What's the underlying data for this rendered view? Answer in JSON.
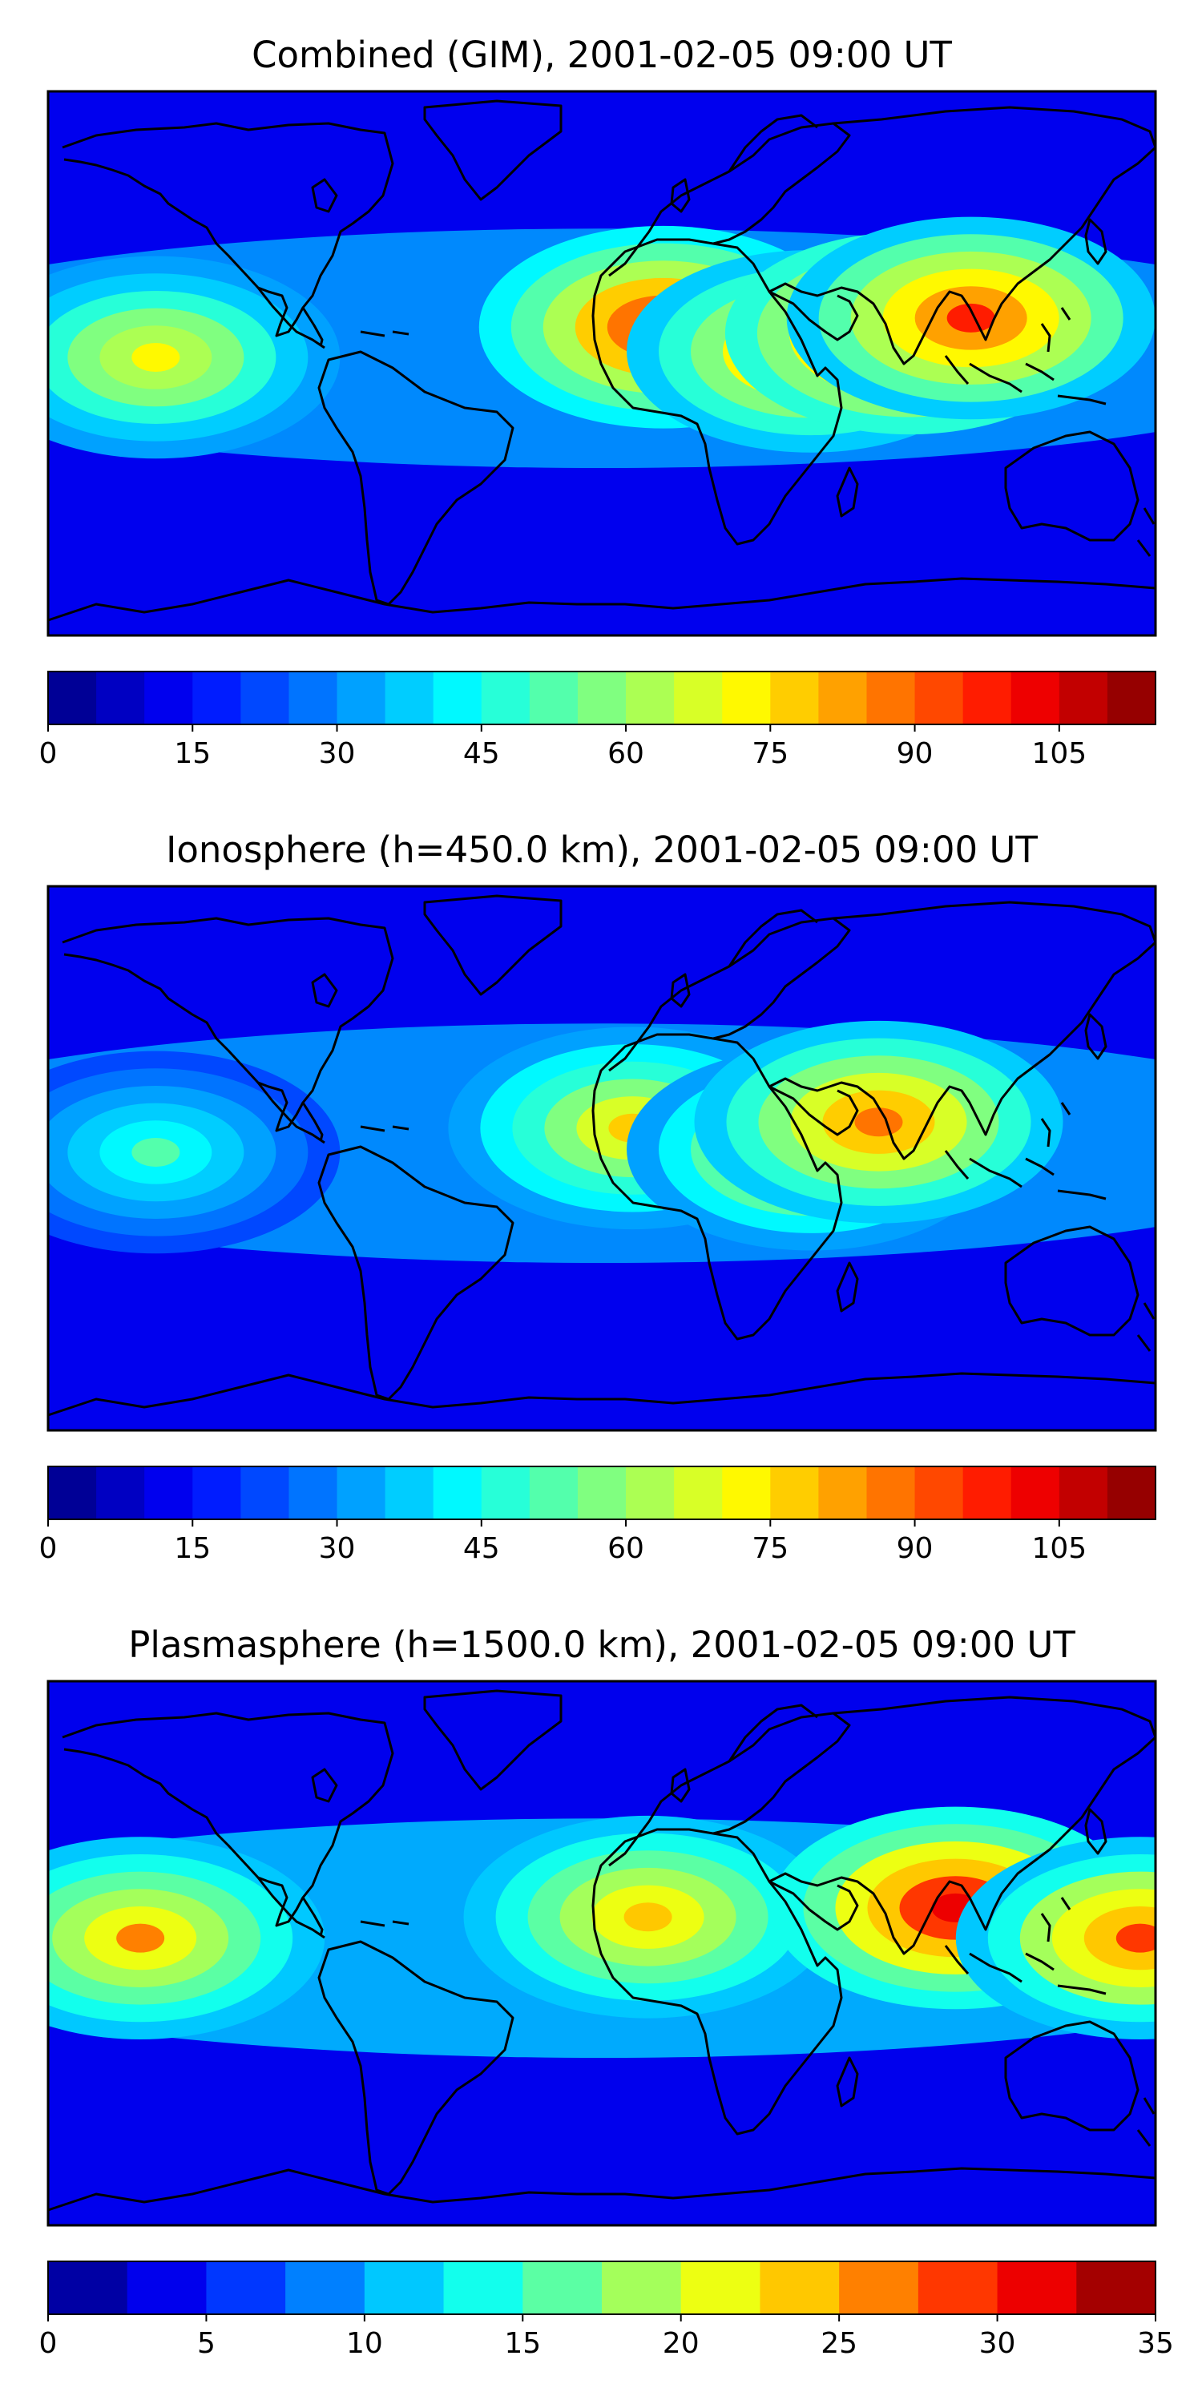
{
  "chart_data": [
    {
      "type": "heatmap",
      "title": "Combined (GIM), 2001-02-05 09:00 UT",
      "colorbar": {
        "levels": [
          0,
          5,
          10,
          15,
          20,
          25,
          30,
          35,
          40,
          45,
          50,
          55,
          60,
          65,
          70,
          75,
          80,
          85,
          90,
          95,
          100,
          105,
          110,
          115
        ],
        "ticks": [
          0,
          15,
          30,
          45,
          60,
          75,
          90,
          105
        ]
      },
      "peaks": [
        {
          "lon": -145,
          "lat": 2,
          "value": 72
        },
        {
          "lon": 20,
          "lat": 12,
          "value": 100
        },
        {
          "lon": 68,
          "lat": 4,
          "value": 92
        },
        {
          "lon": 100,
          "lat": 10,
          "value": 110
        },
        {
          "lon": 120,
          "lat": 15,
          "value": 95
        }
      ]
    },
    {
      "type": "heatmap",
      "title": "Ionosphere  (h=450.0 km), 2001-02-05 09:00 UT",
      "colorbar": {
        "levels": [
          0,
          5,
          10,
          15,
          20,
          25,
          30,
          35,
          40,
          45,
          50,
          55,
          60,
          65,
          70,
          75,
          80,
          85,
          90,
          95,
          100,
          105,
          110,
          115
        ],
        "ticks": [
          0,
          15,
          30,
          45,
          60,
          75,
          90,
          105
        ]
      },
      "peaks": [
        {
          "lon": -145,
          "lat": 2,
          "value": 50
        },
        {
          "lon": 10,
          "lat": 10,
          "value": 75
        },
        {
          "lon": 68,
          "lat": 3,
          "value": 82
        },
        {
          "lon": 90,
          "lat": 12,
          "value": 85
        }
      ]
    },
    {
      "type": "heatmap",
      "title": "Plasmasphere (h=1500.0 km), 2001-02-05 09:00 UT",
      "colorbar": {
        "levels": [
          0,
          2.5,
          5,
          7.5,
          10,
          12.5,
          15,
          17.5,
          20,
          22.5,
          25,
          27.5,
          30,
          32.5,
          35
        ],
        "ticks": [
          0,
          5,
          10,
          15,
          20,
          25,
          30,
          35
        ]
      },
      "peaks": [
        {
          "lon": -150,
          "lat": 5,
          "value": 25
        },
        {
          "lon": 15,
          "lat": 12,
          "value": 24
        },
        {
          "lon": 115,
          "lat": 15,
          "value": 32
        },
        {
          "lon": 175,
          "lat": 5,
          "value": 28
        }
      ]
    }
  ]
}
